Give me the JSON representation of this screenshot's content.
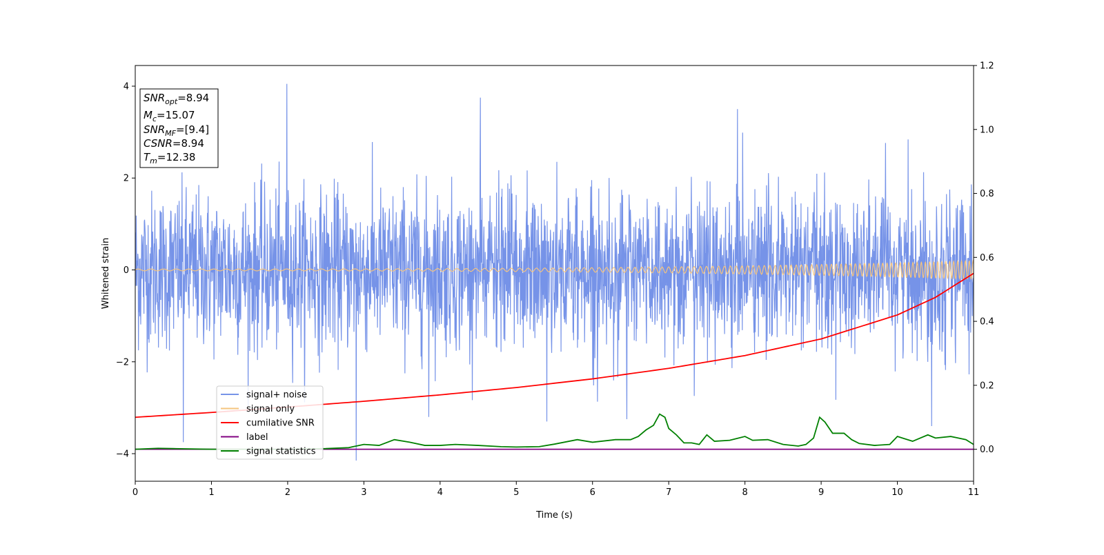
{
  "chart_data": {
    "type": "line",
    "xlabel": "Time (s)",
    "ylabel": "Whitened strain",
    "xlim": [
      0,
      11
    ],
    "ylim": [
      -4.6,
      4.45
    ],
    "y2lim": [
      -0.1,
      1.2
    ],
    "xticks": [
      "0",
      "1",
      "2",
      "3",
      "4",
      "5",
      "6",
      "7",
      "8",
      "9",
      "10",
      "11"
    ],
    "yticks": [
      "−4",
      "−2",
      "0",
      "2",
      "4"
    ],
    "y2ticks": [
      "0.0",
      "0.2",
      "0.4",
      "0.6",
      "0.8",
      "1.0",
      "1.2"
    ],
    "grid": false,
    "legend_position": "lower-left",
    "info_box": {
      "snr_opt": {
        "sym": "SNR",
        "sub": "opt",
        "text": "=8.94"
      },
      "mc": {
        "sym": "M",
        "sub": "c",
        "text": "=15.07"
      },
      "snr_mf": {
        "sym": "SNR",
        "sub": "MF",
        "text": "=[9.4]"
      },
      "csnr": {
        "sym": "CSNR",
        "sub": "",
        "text": "=8.94"
      },
      "tm": {
        "sym": "T",
        "sub": "m",
        "text": "=12.38"
      }
    },
    "series": [
      {
        "name": "signal+ noise",
        "color": "#7693e8",
        "axis": "left",
        "style": "noise",
        "noise_std": 1.0,
        "range": [
          -3.0,
          3.0
        ],
        "spikes": [
          [
            0.63,
            -3.75
          ],
          [
            1.99,
            4.05
          ],
          [
            2.9,
            -4.15
          ],
          [
            4.53,
            3.75
          ],
          [
            7.9,
            3.5
          ],
          [
            3.85,
            -3.2
          ],
          [
            5.4,
            -3.3
          ],
          [
            10.45,
            -3.4
          ],
          [
            6.45,
            -3.25
          ]
        ]
      },
      {
        "name": "signal only",
        "color": "#f5c47e",
        "axis": "left",
        "style": "chirp",
        "amplitude_start": 0.02,
        "amplitude_end": 0.2,
        "cycles_per_second_start": 6,
        "cycles_per_second_end": 20
      },
      {
        "name": "cumilative SNR",
        "color": "#ff0000",
        "axis": "right",
        "x": [
          0,
          1,
          2,
          3,
          4,
          5,
          6,
          7,
          8,
          9,
          10,
          10.5,
          11
        ],
        "y": [
          0.1,
          0.115,
          0.132,
          0.15,
          0.17,
          0.193,
          0.22,
          0.253,
          0.293,
          0.345,
          0.42,
          0.475,
          0.55
        ]
      },
      {
        "name": "label",
        "color": "#800080",
        "axis": "right",
        "x": [
          0,
          11
        ],
        "y": [
          0.0,
          0.0
        ]
      },
      {
        "name": "signal statistics",
        "color": "#008000",
        "axis": "right",
        "x": [
          0,
          0.3,
          0.5,
          1.0,
          1.5,
          2.0,
          2.5,
          2.8,
          3.0,
          3.2,
          3.4,
          3.6,
          3.8,
          4.0,
          4.2,
          4.5,
          4.8,
          5.0,
          5.3,
          5.5,
          5.8,
          6.0,
          6.3,
          6.5,
          6.6,
          6.7,
          6.8,
          6.88,
          6.95,
          7.0,
          7.1,
          7.2,
          7.3,
          7.4,
          7.5,
          7.6,
          7.8,
          8.0,
          8.1,
          8.3,
          8.5,
          8.7,
          8.8,
          8.9,
          8.98,
          9.05,
          9.15,
          9.3,
          9.4,
          9.5,
          9.7,
          9.9,
          10.0,
          10.2,
          10.4,
          10.5,
          10.7,
          10.8,
          10.9,
          11.0
        ],
        "y": [
          0.0,
          0.003,
          0.002,
          0.0,
          0.0,
          0.0,
          0.002,
          0.005,
          0.015,
          0.012,
          0.03,
          0.022,
          0.012,
          0.012,
          0.015,
          0.012,
          0.008,
          0.007,
          0.008,
          0.016,
          0.03,
          0.022,
          0.03,
          0.03,
          0.04,
          0.06,
          0.075,
          0.11,
          0.1,
          0.065,
          0.045,
          0.02,
          0.02,
          0.015,
          0.045,
          0.025,
          0.028,
          0.04,
          0.028,
          0.03,
          0.015,
          0.01,
          0.015,
          0.035,
          0.1,
          0.085,
          0.05,
          0.05,
          0.03,
          0.018,
          0.012,
          0.015,
          0.04,
          0.025,
          0.045,
          0.035,
          0.04,
          0.035,
          0.03,
          0.015
        ]
      }
    ]
  }
}
